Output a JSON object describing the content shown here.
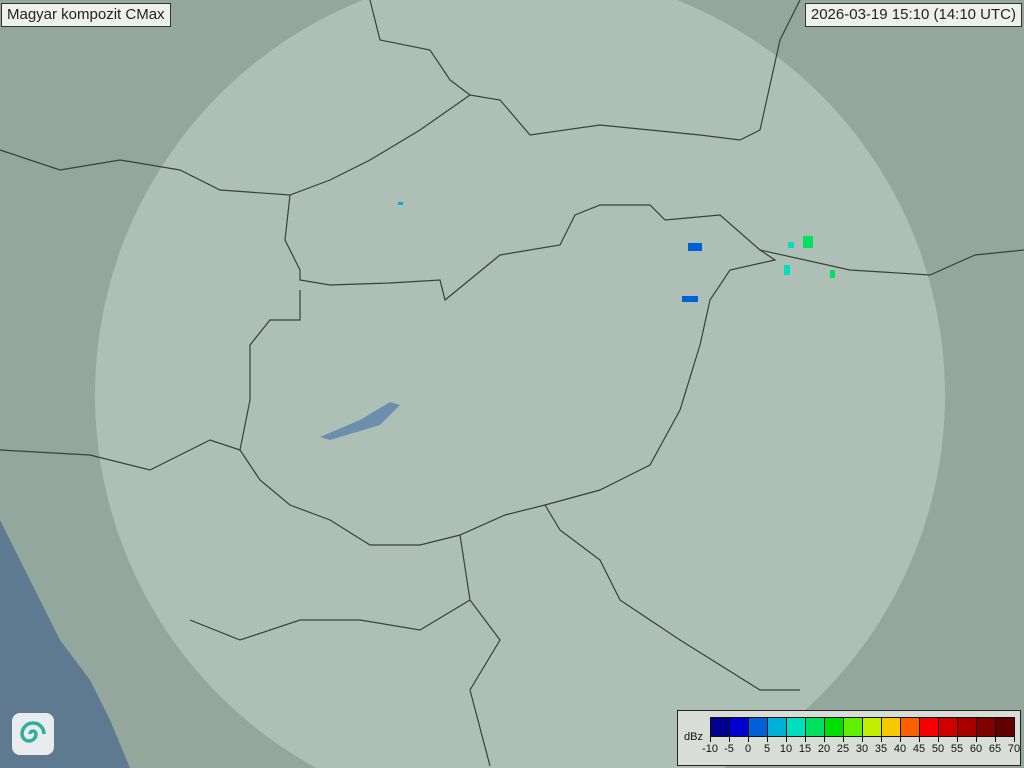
{
  "header": {
    "title": "Magyar kompozit  CMax",
    "timestamp": "2026-03-19 15:10 (14:10 UTC)"
  },
  "legend": {
    "unit": "dBz",
    "ticks": [
      "-10",
      "-5",
      "0",
      "5",
      "10",
      "15",
      "20",
      "25",
      "30",
      "35",
      "40",
      "45",
      "50",
      "55",
      "60",
      "65",
      "70"
    ],
    "colors": [
      "#000090",
      "#0000d0",
      "#0060d8",
      "#00b0d8",
      "#00e0c0",
      "#00e060",
      "#00e000",
      "#60f000",
      "#c0f000",
      "#f8c800",
      "#f86000",
      "#f80000",
      "#d00000",
      "#a80000",
      "#800000",
      "#600000"
    ]
  },
  "map": {
    "land_color": "#93a79c",
    "coverage_color": "#b9c9c0",
    "sea_color": "#5e7a90",
    "logo": "spiral-logo-icon"
  }
}
